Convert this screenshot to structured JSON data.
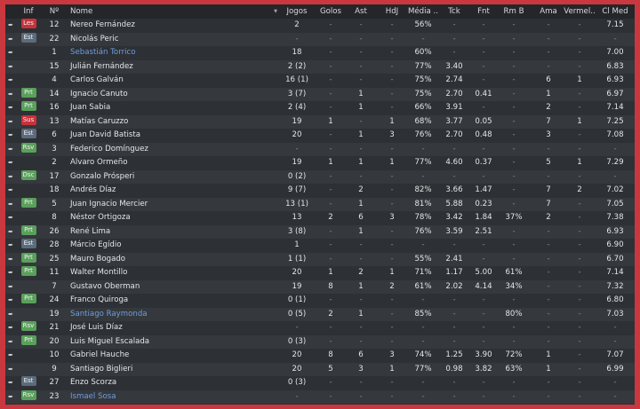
{
  "columns": [
    "Inf",
    "Nº",
    "Nome",
    "Jogos",
    "Golos",
    "Ast",
    "HdJ",
    "Média ..",
    "Tck",
    "Fnt",
    "Rm B",
    "Ama",
    "Vermel..",
    "Cl Med"
  ],
  "sort_icon": "sort-desc-icon",
  "row_icon": "drag-handle-icon",
  "badge_colors": {
    "Les": "#c8323b",
    "Sus": "#c8323b",
    "Est": "#5b6b7c",
    "Prt": "#5aa05c",
    "Rsv": "#5aa05c",
    "Dsc": "#5aa05c"
  },
  "link_color": "#6f9ee0",
  "players": [
    {
      "inf": "Les",
      "num": "12",
      "name": "Nereo Fernández",
      "stats": [
        "2",
        "-",
        "-",
        "-",
        "56%",
        "-",
        "-",
        "-",
        "-",
        "-",
        "7.15"
      ]
    },
    {
      "inf": "Est",
      "num": "22",
      "name": "Nicolás Peric",
      "stats": [
        "-",
        "-",
        "-",
        "-",
        "-",
        "-",
        "-",
        "-",
        "-",
        "-",
        "-"
      ]
    },
    {
      "inf": "",
      "num": "1",
      "name": "Sebastián Torrico",
      "link": true,
      "stats": [
        "18",
        "-",
        "-",
        "-",
        "60%",
        "-",
        "-",
        "-",
        "-",
        "-",
        "7.00"
      ]
    },
    {
      "inf": "",
      "num": "15",
      "name": "Julián Fernández",
      "stats": [
        "2 (2)",
        "-",
        "-",
        "-",
        "77%",
        "3.40",
        "-",
        "-",
        "-",
        "-",
        "6.83"
      ]
    },
    {
      "inf": "",
      "num": "4",
      "name": "Carlos Galván",
      "stats": [
        "16 (1)",
        "-",
        "-",
        "-",
        "75%",
        "2.74",
        "-",
        "-",
        "6",
        "1",
        "6.93"
      ]
    },
    {
      "inf": "Prt",
      "num": "14",
      "name": "Ignacio Canuto",
      "stats": [
        "3 (7)",
        "-",
        "1",
        "-",
        "75%",
        "2.70",
        "0.41",
        "-",
        "1",
        "-",
        "6.97"
      ]
    },
    {
      "inf": "Prt",
      "num": "16",
      "name": "Juan Sabia",
      "stats": [
        "2 (4)",
        "-",
        "1",
        "-",
        "66%",
        "3.91",
        "-",
        "-",
        "2",
        "-",
        "7.14"
      ]
    },
    {
      "inf": "Sus",
      "num": "13",
      "name": "Matías Caruzzo",
      "stats": [
        "19",
        "1",
        "-",
        "1",
        "68%",
        "3.77",
        "0.05",
        "-",
        "7",
        "1",
        "7.25"
      ]
    },
    {
      "inf": "Est",
      "num": "6",
      "name": "Juan David Batista",
      "stats": [
        "20",
        "-",
        "1",
        "3",
        "76%",
        "2.70",
        "0.48",
        "-",
        "3",
        "-",
        "7.08"
      ]
    },
    {
      "inf": "Rsv",
      "num": "3",
      "name": "Federico Domínguez",
      "stats": [
        "-",
        "-",
        "-",
        "-",
        "-",
        "-",
        "-",
        "-",
        "-",
        "-",
        "-"
      ]
    },
    {
      "inf": "",
      "num": "2",
      "name": "Alvaro Ormeño",
      "stats": [
        "19",
        "1",
        "1",
        "1",
        "77%",
        "4.60",
        "0.37",
        "-",
        "5",
        "1",
        "7.29"
      ]
    },
    {
      "inf": "Dsc",
      "num": "17",
      "name": "Gonzalo Prósperi",
      "stats": [
        "0 (2)",
        "-",
        "-",
        "-",
        "-",
        "-",
        "-",
        "-",
        "-",
        "-",
        "-"
      ]
    },
    {
      "inf": "",
      "num": "18",
      "name": "Andrés Díaz",
      "stats": [
        "9 (7)",
        "-",
        "2",
        "-",
        "82%",
        "3.66",
        "1.47",
        "-",
        "7",
        "2",
        "7.02"
      ]
    },
    {
      "inf": "Prt",
      "num": "5",
      "name": "Juan Ignacio Mercier",
      "stats": [
        "13 (1)",
        "-",
        "1",
        "-",
        "81%",
        "5.88",
        "0.23",
        "-",
        "7",
        "-",
        "7.05"
      ]
    },
    {
      "inf": "",
      "num": "8",
      "name": "Néstor Ortigoza",
      "stats": [
        "13",
        "2",
        "6",
        "3",
        "78%",
        "3.42",
        "1.84",
        "37%",
        "2",
        "-",
        "7.38"
      ]
    },
    {
      "inf": "Prt",
      "num": "26",
      "name": "René Lima",
      "stats": [
        "3 (8)",
        "-",
        "1",
        "-",
        "76%",
        "3.59",
        "2.51",
        "-",
        "-",
        "-",
        "6.93"
      ]
    },
    {
      "inf": "Est",
      "num": "28",
      "name": "Márcio Egídio",
      "stats": [
        "1",
        "-",
        "-",
        "-",
        "-",
        "-",
        "-",
        "-",
        "-",
        "-",
        "6.90"
      ]
    },
    {
      "inf": "Prt",
      "num": "25",
      "name": "Mauro Bogado",
      "stats": [
        "1 (1)",
        "-",
        "-",
        "-",
        "55%",
        "2.41",
        "-",
        "-",
        "-",
        "-",
        "6.70"
      ]
    },
    {
      "inf": "Prt",
      "num": "11",
      "name": "Walter Montillo",
      "stats": [
        "20",
        "1",
        "2",
        "1",
        "71%",
        "1.17",
        "5.00",
        "61%",
        "-",
        "-",
        "7.14"
      ]
    },
    {
      "inf": "",
      "num": "7",
      "name": "Gustavo Oberman",
      "stats": [
        "19",
        "8",
        "1",
        "2",
        "61%",
        "2.02",
        "4.14",
        "34%",
        "-",
        "-",
        "7.32"
      ]
    },
    {
      "inf": "Prt",
      "num": "24",
      "name": "Franco Quiroga",
      "stats": [
        "0 (1)",
        "-",
        "-",
        "-",
        "-",
        "-",
        "-",
        "-",
        "-",
        "-",
        "6.80"
      ]
    },
    {
      "inf": "",
      "num": "19",
      "name": "Santiago Raymonda",
      "link": true,
      "stats": [
        "0 (5)",
        "2",
        "1",
        "-",
        "85%",
        "-",
        "-",
        "80%",
        "-",
        "-",
        "7.03"
      ]
    },
    {
      "inf": "Rsv",
      "num": "21",
      "name": "José Luis Díaz",
      "stats": [
        "-",
        "-",
        "-",
        "-",
        "-",
        "-",
        "-",
        "-",
        "-",
        "-",
        "-"
      ]
    },
    {
      "inf": "Prt",
      "num": "20",
      "name": "Luis Miguel Escalada",
      "stats": [
        "0 (3)",
        "-",
        "-",
        "-",
        "-",
        "-",
        "-",
        "-",
        "-",
        "-",
        "-"
      ]
    },
    {
      "inf": "",
      "num": "10",
      "name": "Gabriel Hauche",
      "stats": [
        "20",
        "8",
        "6",
        "3",
        "74%",
        "1.25",
        "3.90",
        "72%",
        "1",
        "-",
        "7.07"
      ]
    },
    {
      "inf": "",
      "num": "9",
      "name": "Santiago Biglieri",
      "stats": [
        "20",
        "5",
        "3",
        "1",
        "77%",
        "0.98",
        "3.82",
        "63%",
        "1",
        "-",
        "6.99"
      ]
    },
    {
      "inf": "Est",
      "num": "27",
      "name": "Enzo Scorza",
      "stats": [
        "0 (3)",
        "-",
        "-",
        "-",
        "-",
        "-",
        "-",
        "-",
        "-",
        "-",
        "-"
      ]
    },
    {
      "inf": "Rsv",
      "num": "23",
      "name": "Ismael Sosa",
      "link": true,
      "stats": [
        "-",
        "-",
        "-",
        "-",
        "-",
        "-",
        "-",
        "-",
        "-",
        "-",
        "-"
      ]
    }
  ]
}
